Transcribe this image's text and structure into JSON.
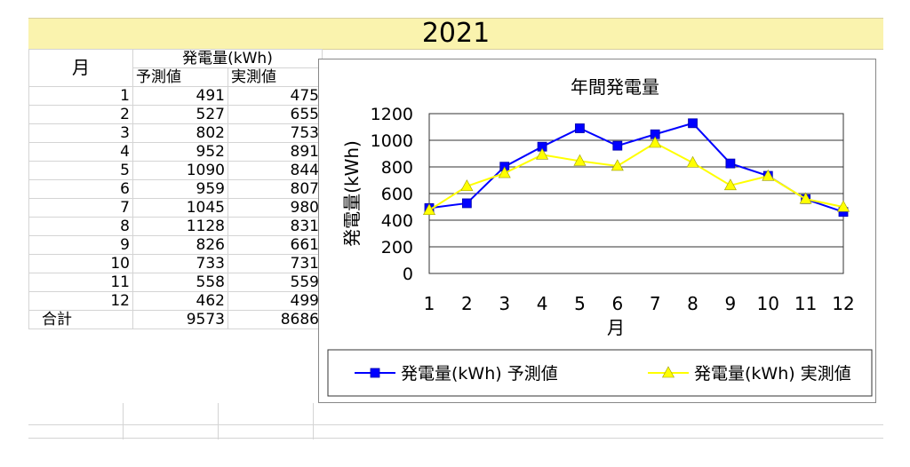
{
  "banner": {
    "year": "2021"
  },
  "table": {
    "month_header": "月",
    "group_header": "発電量(kWh)",
    "col_forecast": "予測値",
    "col_actual": "実測値",
    "rows": [
      {
        "month": "1",
        "forecast": "491",
        "actual": "475"
      },
      {
        "month": "2",
        "forecast": "527",
        "actual": "655"
      },
      {
        "month": "3",
        "forecast": "802",
        "actual": "753"
      },
      {
        "month": "4",
        "forecast": "952",
        "actual": "891"
      },
      {
        "month": "5",
        "forecast": "1090",
        "actual": "844"
      },
      {
        "month": "6",
        "forecast": "959",
        "actual": "807"
      },
      {
        "month": "7",
        "forecast": "1045",
        "actual": "980"
      },
      {
        "month": "8",
        "forecast": "1128",
        "actual": "831"
      },
      {
        "month": "9",
        "forecast": "826",
        "actual": "661"
      },
      {
        "month": "10",
        "forecast": "733",
        "actual": "731"
      },
      {
        "month": "11",
        "forecast": "558",
        "actual": "559"
      },
      {
        "month": "12",
        "forecast": "462",
        "actual": "499"
      }
    ],
    "total_label": "合計",
    "total_forecast": "9573",
    "total_actual": "8686"
  },
  "chart_data": {
    "type": "line",
    "title": "年間発電量",
    "xlabel": "月",
    "ylabel": "発電量(kWh)",
    "categories": [
      "1",
      "2",
      "3",
      "4",
      "5",
      "6",
      "7",
      "8",
      "9",
      "10",
      "11",
      "12"
    ],
    "ylim": [
      0,
      1200
    ],
    "yticks": [
      0,
      200,
      400,
      600,
      800,
      1000,
      1200
    ],
    "grid": true,
    "legend_position": "bottom",
    "series": [
      {
        "name": "発電量(kWh) 予測値",
        "color": "#0000ff",
        "marker": "square",
        "values": [
          491,
          527,
          802,
          952,
          1090,
          959,
          1045,
          1128,
          826,
          733,
          558,
          462
        ]
      },
      {
        "name": "発電量(kWh) 実測値",
        "color": "#ffff00",
        "marker": "triangle",
        "values": [
          475,
          655,
          753,
          891,
          844,
          807,
          980,
          831,
          661,
          731,
          559,
          499
        ]
      }
    ]
  }
}
